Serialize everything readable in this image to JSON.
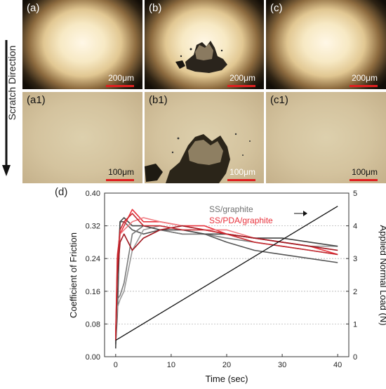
{
  "panels": [
    {
      "label": "(a)",
      "scale": "200μm"
    },
    {
      "label": "(b)",
      "scale": "200μm"
    },
    {
      "label": "(c)",
      "scale": "200μm"
    },
    {
      "label": "(a1)",
      "scale": "100μm"
    },
    {
      "label": "(b1)",
      "scale": "100μm"
    },
    {
      "label": "(c1)",
      "scale": "100μm"
    }
  ],
  "scratch_direction": "Scratch Direction",
  "colors": {
    "scale_bar": "#e02020",
    "ss_graphite": "#707070",
    "ss_pda_graphite": "#e8323c",
    "load_line": "#111111"
  },
  "chart_data": {
    "type": "line",
    "panel_label": "(d)",
    "xlabel": "Time (sec)",
    "ylabel": "Coefficient of Friction",
    "y2label": "Applied Normal Load (N)",
    "xlim": [
      -2,
      42
    ],
    "ylim": [
      0.0,
      0.4
    ],
    "y2lim": [
      0,
      5
    ],
    "xticks": [
      "0",
      "10",
      "20",
      "30",
      "40"
    ],
    "yticks": [
      "0.00",
      "0.08",
      "0.16",
      "0.24",
      "0.32",
      "0.40"
    ],
    "y2ticks": [
      "0",
      "1",
      "2",
      "3",
      "4",
      "5"
    ],
    "gridlines_y": [
      0.08,
      0.16,
      0.24,
      0.32
    ],
    "legend": [
      {
        "name": "SS/graphite",
        "color": "#707070"
      },
      {
        "name": "SS/PDA/graphite",
        "color": "#e8323c"
      }
    ],
    "series": [
      {
        "name": "SS/graphite",
        "color": "#555555",
        "x": [
          0,
          0.3,
          0.8,
          1.5,
          3,
          5,
          8,
          12,
          16,
          20,
          25,
          30,
          35,
          40
        ],
        "y": [
          0.03,
          0.1,
          0.33,
          0.33,
          0.31,
          0.3,
          0.31,
          0.3,
          0.3,
          0.28,
          0.26,
          0.25,
          0.24,
          0.23
        ]
      },
      {
        "name": "SS/graphite",
        "color": "#7a7a7a",
        "x": [
          0,
          0.3,
          0.8,
          1.5,
          3,
          5,
          8,
          12,
          16,
          20,
          25,
          30,
          35,
          40
        ],
        "y": [
          0.03,
          0.14,
          0.15,
          0.18,
          0.3,
          0.32,
          0.31,
          0.3,
          0.3,
          0.29,
          0.28,
          0.27,
          0.26,
          0.25
        ]
      },
      {
        "name": "SS/graphite",
        "color": "#999999",
        "x": [
          0,
          0.3,
          0.8,
          1.5,
          3,
          5,
          8,
          12,
          16,
          20,
          25,
          30,
          35,
          40
        ],
        "y": [
          0.04,
          0.12,
          0.14,
          0.16,
          0.26,
          0.31,
          0.32,
          0.31,
          0.3,
          0.3,
          0.29,
          0.28,
          0.27,
          0.27
        ]
      },
      {
        "name": "SS/graphite",
        "color": "#444444",
        "x": [
          0,
          0.3,
          0.8,
          1.5,
          3,
          5,
          8,
          12,
          16,
          20,
          25,
          30,
          35,
          40
        ],
        "y": [
          0.02,
          0.2,
          0.33,
          0.34,
          0.32,
          0.32,
          0.31,
          0.31,
          0.3,
          0.3,
          0.29,
          0.29,
          0.28,
          0.27
        ]
      },
      {
        "name": "SS/PDA/graphite",
        "color": "#e8323c",
        "x": [
          0,
          0.3,
          0.8,
          1.5,
          3,
          5,
          8,
          12,
          16,
          20,
          25,
          30,
          35,
          40
        ],
        "y": [
          0.06,
          0.22,
          0.3,
          0.32,
          0.36,
          0.33,
          0.33,
          0.32,
          0.32,
          0.3,
          0.29,
          0.28,
          0.27,
          0.25
        ]
      },
      {
        "name": "SS/PDA/graphite",
        "color": "#f07a80",
        "x": [
          0,
          0.3,
          0.8,
          1.5,
          3,
          5,
          8,
          12,
          16,
          20,
          25,
          30,
          35,
          40
        ],
        "y": [
          0.05,
          0.25,
          0.3,
          0.31,
          0.33,
          0.34,
          0.33,
          0.32,
          0.31,
          0.31,
          0.29,
          0.28,
          0.27,
          0.26
        ]
      },
      {
        "name": "SS/PDA/graphite",
        "color": "#a01820",
        "x": [
          0,
          0.3,
          0.8,
          1.5,
          3,
          5,
          8,
          12,
          16,
          20,
          25,
          30,
          35,
          40
        ],
        "y": [
          0.05,
          0.2,
          0.28,
          0.3,
          0.26,
          0.29,
          0.31,
          0.32,
          0.31,
          0.3,
          0.29,
          0.28,
          0.27,
          0.26
        ]
      },
      {
        "name": "SS/PDA/graphite",
        "color": "#c8282f",
        "x": [
          0,
          0.3,
          0.8,
          1.5,
          3,
          5,
          8,
          12,
          16,
          20,
          25,
          30,
          35,
          40
        ],
        "y": [
          0.04,
          0.24,
          0.31,
          0.33,
          0.35,
          0.32,
          0.32,
          0.31,
          0.31,
          0.3,
          0.28,
          0.27,
          0.26,
          0.25
        ]
      }
    ],
    "load_series": {
      "name": "Applied Normal Load (N)",
      "x": [
        0,
        40
      ],
      "y": [
        0.5,
        4.6
      ]
    }
  }
}
